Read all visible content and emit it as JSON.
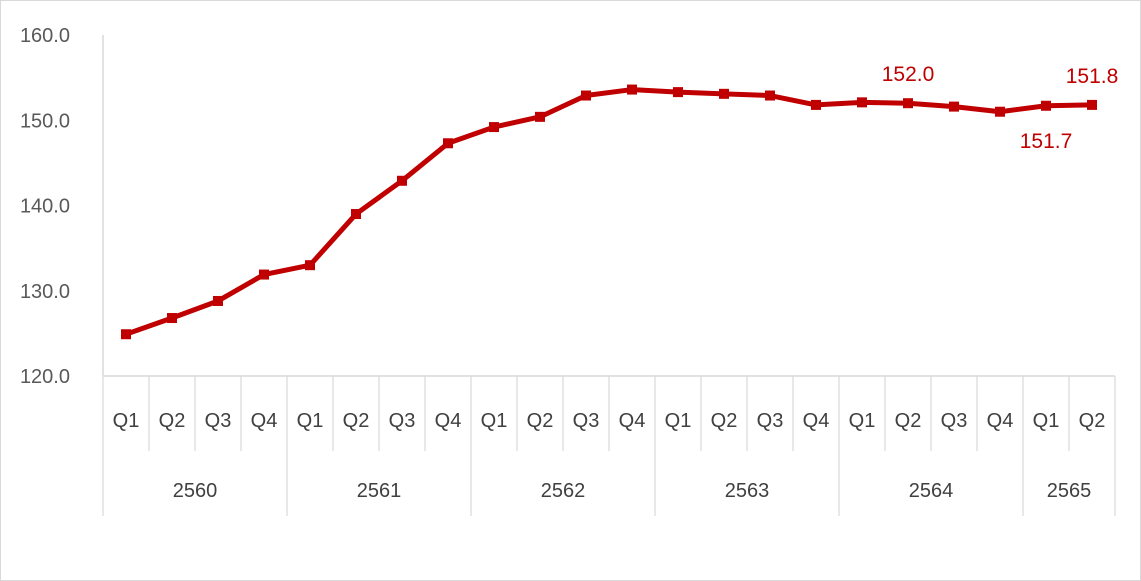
{
  "chart_data": {
    "type": "line",
    "title": "",
    "xlabel": "",
    "ylabel": "",
    "ylim": [
      120,
      160
    ],
    "y_ticks": [
      "120.0",
      "130.0",
      "140.0",
      "150.0",
      "160.0"
    ],
    "grid": false,
    "legend": "none",
    "groups": [
      {
        "label": "2560",
        "quarters": [
          "Q1",
          "Q2",
          "Q3",
          "Q4"
        ]
      },
      {
        "label": "2561",
        "quarters": [
          "Q1",
          "Q2",
          "Q3",
          "Q4"
        ]
      },
      {
        "label": "2562",
        "quarters": [
          "Q1",
          "Q2",
          "Q3",
          "Q4"
        ]
      },
      {
        "label": "2563",
        "quarters": [
          "Q1",
          "Q2",
          "Q3",
          "Q4"
        ]
      },
      {
        "label": "2564",
        "quarters": [
          "Q1",
          "Q2",
          "Q3",
          "Q4"
        ]
      },
      {
        "label": "2565",
        "quarters": [
          "Q1",
          "Q2"
        ]
      }
    ],
    "series": [
      {
        "color": "#c00000",
        "values": [
          124.9,
          126.8,
          128.8,
          131.9,
          133.0,
          139.0,
          142.9,
          147.3,
          149.2,
          150.4,
          152.9,
          153.6,
          153.3,
          153.1,
          152.9,
          151.8,
          152.1,
          152.0,
          151.6,
          151.0,
          151.7,
          151.8
        ],
        "data_labels": [
          {
            "index": 17,
            "text": "152.0"
          },
          {
            "index": 20,
            "text": "151.7"
          },
          {
            "index": 21,
            "text": "151.8"
          }
        ]
      }
    ]
  }
}
